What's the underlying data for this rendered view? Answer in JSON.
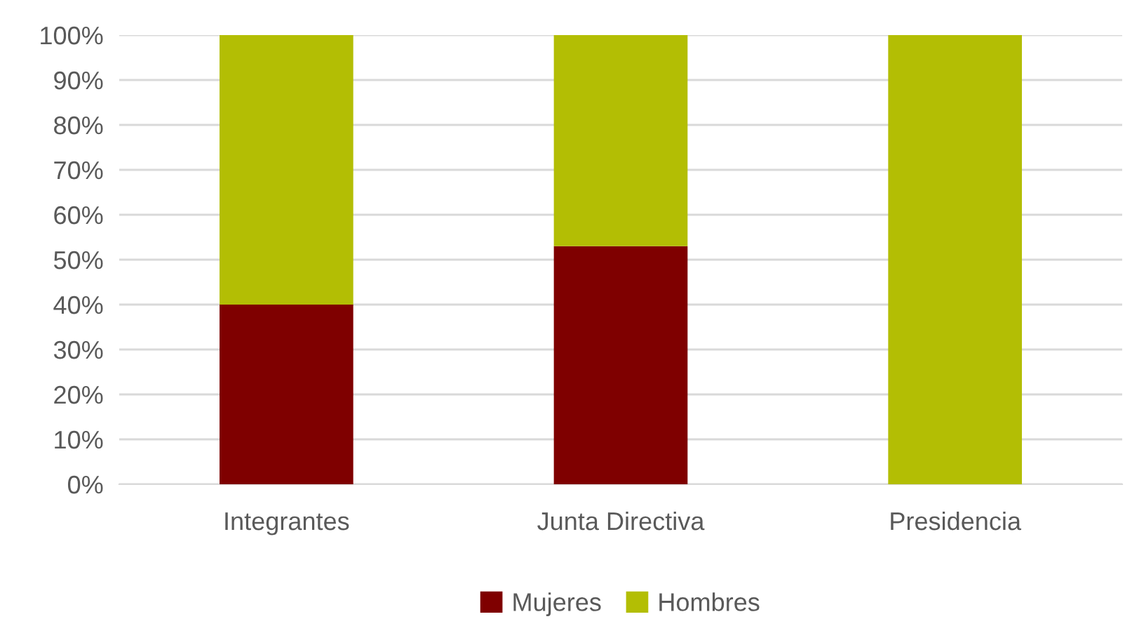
{
  "chart_data": {
    "type": "bar",
    "stacked": true,
    "categories": [
      "Integrantes",
      "Junta Directiva",
      "Presidencia"
    ],
    "series": [
      {
        "name": "Mujeres",
        "color": "#7f0000",
        "values": [
          40,
          53,
          0
        ]
      },
      {
        "name": "Hombres",
        "color": "#b3be04",
        "values": [
          60,
          47,
          100
        ]
      }
    ],
    "ylim": [
      0,
      100
    ],
    "yticks": [
      {
        "value": 0,
        "label": "0%"
      },
      {
        "value": 10,
        "label": "10%"
      },
      {
        "value": 20,
        "label": "20%"
      },
      {
        "value": 30,
        "label": "30%"
      },
      {
        "value": 40,
        "label": "40%"
      },
      {
        "value": 50,
        "label": "50%"
      },
      {
        "value": 60,
        "label": "60%"
      },
      {
        "value": 70,
        "label": "70%"
      },
      {
        "value": 80,
        "label": "80%"
      },
      {
        "value": 90,
        "label": "90%"
      },
      {
        "value": 100,
        "label": "100%"
      }
    ],
    "grid": "y",
    "legend": "bottom"
  }
}
